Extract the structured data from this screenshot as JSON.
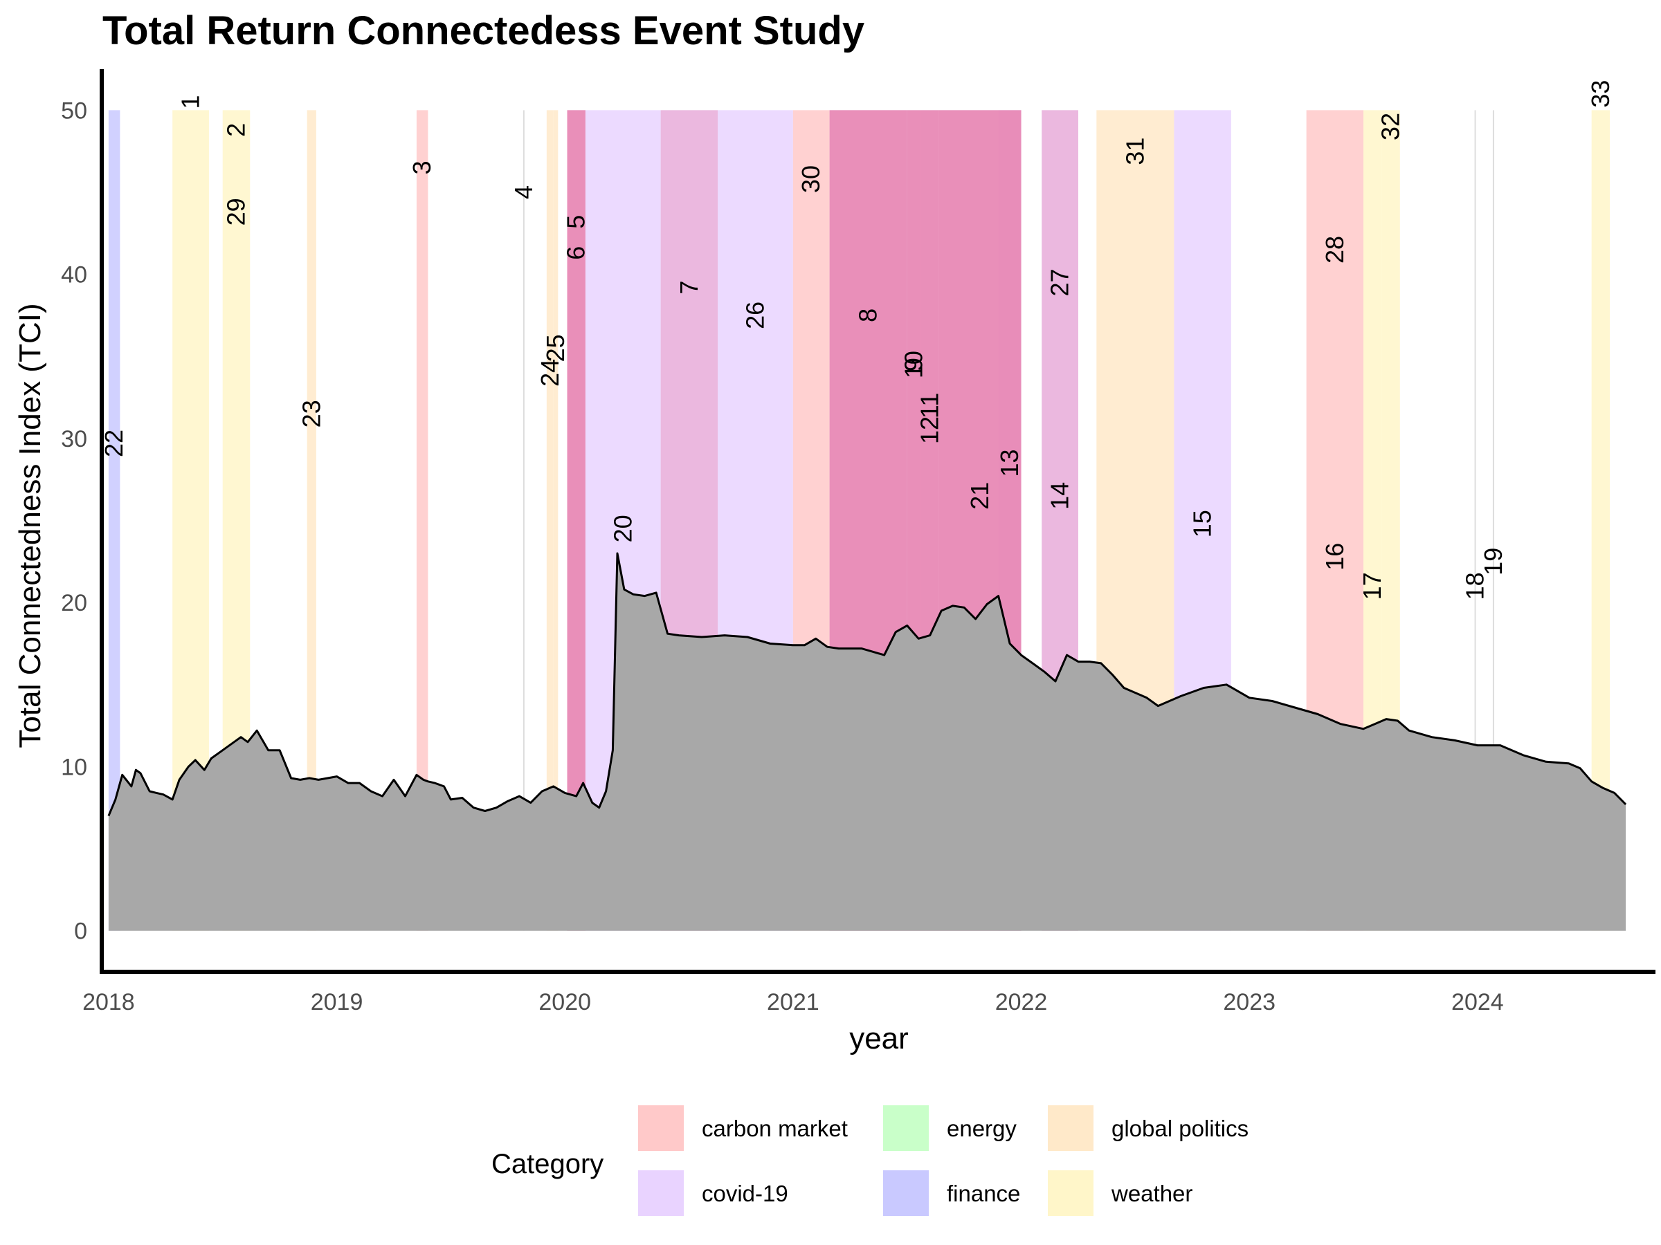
{
  "chart_data": {
    "type": "area",
    "title": "Total Return Connectedess Event Study",
    "xlabel": "year",
    "ylabel": "Total Connectedness Index (TCI)",
    "xlim": [
      2017.97,
      2024.78
    ],
    "ylim": [
      -2.5,
      52.5
    ],
    "x_ticks": [
      2018,
      2019,
      2020,
      2021,
      2022,
      2023,
      2024
    ],
    "x_tick_labels": [
      "2018",
      "2019",
      "2020",
      "2021",
      "2022",
      "2023",
      "2024"
    ],
    "y_ticks": [
      0,
      10,
      20,
      30,
      40,
      50
    ],
    "y_tick_labels": [
      "0",
      "10",
      "20",
      "30",
      "40",
      "50"
    ],
    "grid": false,
    "legend": {
      "title": "Category",
      "placement": "bottom",
      "items": [
        {
          "name": "carbon market",
          "color": "#FFC9C9"
        },
        {
          "name": "energy",
          "color": "#C9FFC9"
        },
        {
          "name": "global politics",
          "color": "#FFE9C9"
        },
        {
          "name": "covid-19",
          "color": "#E9D3FF"
        },
        {
          "name": "finance",
          "color": "#C9C9FF"
        },
        {
          "name": "weather",
          "color": "#FFF6C9"
        }
      ]
    },
    "colors": {
      "area_fill": "#A8A8A8",
      "line": "#000000",
      "axis": "#000000",
      "zero_width_event_line": "#DDDDDD",
      "overlap_tint": "#E8527F"
    },
    "series": [
      {
        "x": [
          2018.0,
          2018.03,
          2018.06,
          2018.1,
          2018.12,
          2018.14,
          2018.18,
          2018.21,
          2018.24,
          2018.28,
          2018.31,
          2018.35,
          2018.38,
          2018.42,
          2018.45,
          2018.5,
          2018.54,
          2018.58,
          2018.61,
          2018.65,
          2018.7,
          2018.75,
          2018.8,
          2018.84,
          2018.88,
          2018.92,
          2018.96,
          2019.0,
          2019.05,
          2019.1,
          2019.15,
          2019.2,
          2019.25,
          2019.3,
          2019.35,
          2019.38,
          2019.4,
          2019.43,
          2019.47,
          2019.5,
          2019.55,
          2019.6,
          2019.65,
          2019.7,
          2019.75,
          2019.8,
          2019.85,
          2019.9,
          2019.95,
          2020.0,
          2020.05,
          2020.08,
          2020.12,
          2020.15,
          2020.18,
          2020.21,
          2020.23,
          2020.26,
          2020.3,
          2020.35,
          2020.4,
          2020.45,
          2020.5,
          2020.6,
          2020.7,
          2020.8,
          2020.9,
          2021.0,
          2021.05,
          2021.1,
          2021.15,
          2021.2,
          2021.25,
          2021.3,
          2021.35,
          2021.4,
          2021.45,
          2021.5,
          2021.55,
          2021.6,
          2021.65,
          2021.7,
          2021.75,
          2021.8,
          2021.85,
          2021.9,
          2021.95,
          2022.0,
          2022.05,
          2022.1,
          2022.15,
          2022.2,
          2022.25,
          2022.3,
          2022.35,
          2022.4,
          2022.45,
          2022.5,
          2022.55,
          2022.6,
          2022.7,
          2022.8,
          2022.9,
          2023.0,
          2023.1,
          2023.2,
          2023.3,
          2023.4,
          2023.5,
          2023.55,
          2023.6,
          2023.65,
          2023.7,
          2023.8,
          2023.9,
          2024.0,
          2024.1,
          2024.2,
          2024.3,
          2024.4,
          2024.45,
          2024.5,
          2024.55,
          2024.6,
          2024.65
        ],
        "y": [
          7.0,
          8.0,
          9.5,
          8.8,
          9.8,
          9.6,
          8.5,
          8.4,
          8.3,
          8.0,
          9.2,
          10.0,
          10.4,
          9.8,
          10.5,
          11.0,
          11.4,
          11.8,
          11.5,
          12.2,
          11.0,
          11.0,
          9.3,
          9.2,
          9.3,
          9.2,
          9.3,
          9.4,
          9.0,
          9.0,
          8.5,
          8.2,
          9.2,
          8.2,
          9.5,
          9.2,
          9.1,
          9.0,
          8.8,
          8.0,
          8.1,
          7.5,
          7.3,
          7.5,
          7.9,
          8.2,
          7.8,
          8.5,
          8.8,
          8.4,
          8.2,
          9.0,
          7.8,
          7.5,
          8.5,
          11.0,
          23.0,
          20.8,
          20.5,
          20.4,
          20.6,
          18.1,
          18.0,
          17.9,
          18.0,
          17.9,
          17.5,
          17.4,
          17.4,
          17.8,
          17.3,
          17.2,
          17.2,
          17.2,
          17.0,
          16.8,
          18.2,
          18.6,
          17.8,
          18.0,
          19.5,
          19.8,
          19.7,
          19.0,
          19.9,
          20.4,
          17.5,
          16.8,
          16.3,
          15.8,
          15.2,
          16.8,
          16.4,
          16.4,
          16.3,
          15.6,
          14.8,
          14.5,
          14.2,
          13.7,
          14.3,
          14.8,
          15.0,
          14.2,
          14.0,
          13.6,
          13.2,
          12.6,
          12.3,
          12.6,
          12.9,
          12.8,
          12.2,
          11.8,
          11.6,
          11.3,
          11.3,
          10.7,
          10.3,
          10.2,
          9.9,
          9.1,
          8.7,
          8.4,
          7.7
        ]
      }
    ],
    "events": [
      {
        "label": "22",
        "category": "finance",
        "start": 2018.0,
        "end": 2018.05,
        "label_y": 29.7
      },
      {
        "label": "1",
        "category": "weather",
        "start": 2018.28,
        "end": 2018.44,
        "label_y": 50.5
      },
      {
        "label": "2",
        "category": "weather",
        "start": 2018.5,
        "end": 2018.62,
        "label_y": 48.8
      },
      {
        "label": "29",
        "category": "weather",
        "start": 2018.5,
        "end": 2018.62,
        "label_y": 43.8
      },
      {
        "label": "23",
        "category": "global politics",
        "start": 2018.87,
        "end": 2018.91,
        "label_y": 31.5
      },
      {
        "label": "3",
        "category": "carbon market",
        "start": 2019.35,
        "end": 2019.4,
        "label_y": 46.5
      },
      {
        "label": "4",
        "category": "covid-19",
        "start": 2019.82,
        "end": 2019.82,
        "label_y": 45.0
      },
      {
        "label": "24",
        "category": "global politics",
        "start": 2019.92,
        "end": 2019.95,
        "label_y": 34.0
      },
      {
        "label": "25",
        "category": "global politics",
        "start": 2019.95,
        "end": 2019.97,
        "label_y": 35.5
      },
      {
        "label": "5",
        "category": "covid-19",
        "start": 2020.01,
        "end": 2020.09,
        "label_y": 43.2
      },
      {
        "label": "6",
        "category": "covid-19",
        "start": 2020.01,
        "end": 2020.09,
        "label_y": 41.3
      },
      {
        "label": "20",
        "category": "covid-19",
        "start": 2020.09,
        "end": 2020.42,
        "label_y": 24.5
      },
      {
        "label": "7",
        "category": "covid-19",
        "start": 2020.42,
        "end": 2020.67,
        "label_y": 39.2
      },
      {
        "label": "26",
        "category": "covid-19",
        "start": 2020.67,
        "end": 2021.0,
        "label_y": 37.5
      },
      {
        "label": "30",
        "category": "carbon market",
        "start": 2021.0,
        "end": 2021.16,
        "label_y": 45.8
      },
      {
        "label": "8",
        "category": "covid-19",
        "start": 2021.16,
        "end": 2021.5,
        "label_y": 37.5
      },
      {
        "label": "9",
        "category": "covid-19",
        "start": 2021.5,
        "end": 2021.56,
        "label_y": 34.5
      },
      {
        "label": "10",
        "category": "covid-19",
        "start": 2021.5,
        "end": 2021.56,
        "label_y": 34.5
      },
      {
        "label": "11",
        "category": "covid-19",
        "start": 2021.56,
        "end": 2021.64,
        "label_y": 32.0
      },
      {
        "label": "12",
        "category": "covid-19",
        "start": 2021.56,
        "end": 2021.64,
        "label_y": 30.5
      },
      {
        "label": "21",
        "category": "covid-19",
        "start": 2021.64,
        "end": 2022.0,
        "label_y": 26.5
      },
      {
        "label": "13",
        "category": "covid-19",
        "start": 2021.9,
        "end": 2022.0,
        "label_y": 28.5
      },
      {
        "label": "14",
        "category": "covid-19",
        "start": 2022.09,
        "end": 2022.25,
        "label_y": 26.5
      },
      {
        "label": "27",
        "category": "covid-19",
        "start": 2022.09,
        "end": 2022.25,
        "label_y": 39.5
      },
      {
        "label": "31",
        "category": "global politics",
        "start": 2022.33,
        "end": 2022.67,
        "label_y": 47.5
      },
      {
        "label": "15",
        "category": "covid-19",
        "start": 2022.67,
        "end": 2022.92,
        "label_y": 24.8
      },
      {
        "label": "16",
        "category": "carbon market",
        "start": 2023.25,
        "end": 2023.5,
        "label_y": 22.8
      },
      {
        "label": "28",
        "category": "carbon market",
        "start": 2023.25,
        "end": 2023.5,
        "label_y": 41.5
      },
      {
        "label": "17",
        "category": "weather",
        "start": 2023.5,
        "end": 2023.58,
        "label_y": 21.0
      },
      {
        "label": "32",
        "category": "weather",
        "start": 2023.58,
        "end": 2023.66,
        "label_y": 49.0
      },
      {
        "label": "18",
        "category": "covid-19",
        "start": 2023.99,
        "end": 2023.99,
        "label_y": 21.0
      },
      {
        "label": "19",
        "category": "covid-19",
        "start": 2024.07,
        "end": 2024.07,
        "label_y": 22.5
      },
      {
        "label": "33",
        "category": "weather",
        "start": 2024.5,
        "end": 2024.58,
        "label_y": 51.0
      }
    ]
  }
}
